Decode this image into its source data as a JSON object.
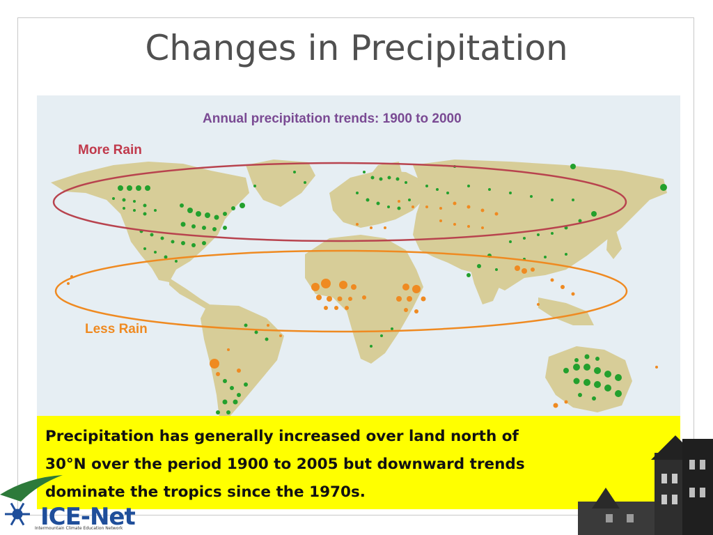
{
  "slide": {
    "title": "Changes in Precipitation"
  },
  "map": {
    "heading": "Annual precipitation trends: 1900 to 2000",
    "label_more": "More Rain",
    "label_less": "Less Rain",
    "colors": {
      "ocean": "#e6eef3",
      "land": "#d7cd98",
      "increase_dot": "#23a02d",
      "decrease_dot": "#ef8a21",
      "more_rain_ellipse": "#b8434e",
      "less_rain_ellipse": "#ef8a21"
    },
    "legend_meaning": {
      "green": "More Rain",
      "orange": "Less Rain"
    }
  },
  "caption": {
    "line1": "Precipitation has generally increased over land north of",
    "line2": "30°N over the period 1900 to 2005 but downward trends",
    "line3": "dominate the tropics since the 1970s."
  },
  "logo": {
    "name": "ICE-Net",
    "subtitle": "Intermountain Climate Education Network",
    "color": "#1f4e9a"
  }
}
